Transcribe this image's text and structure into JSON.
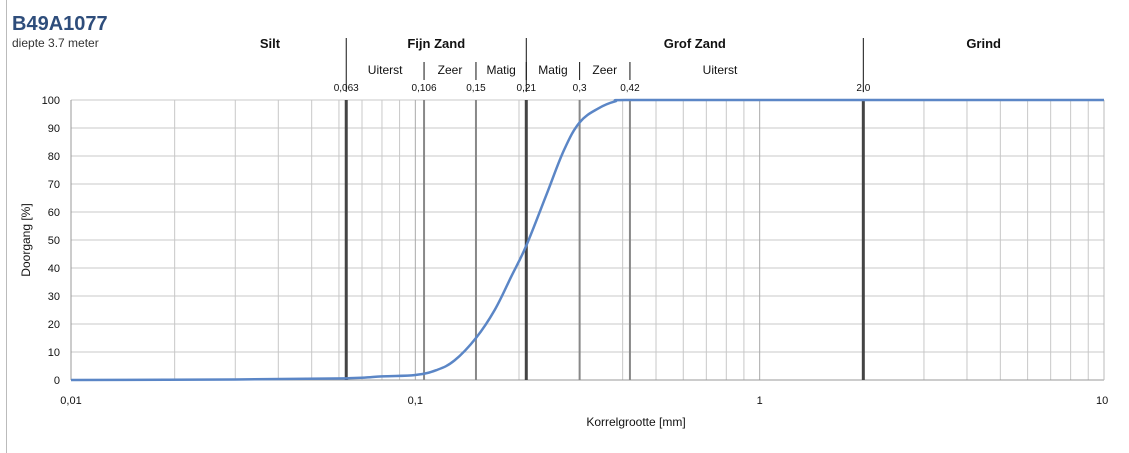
{
  "header": {
    "title": "B49A1077",
    "subtitle": "diepte 3.7 meter"
  },
  "zones": [
    {
      "label": "Silt",
      "from": 0.01,
      "to": 0.063
    },
    {
      "label": "Fijn Zand",
      "from": 0.063,
      "to": 0.21
    },
    {
      "label": "Grof Zand",
      "from": 0.21,
      "to": 2.0
    },
    {
      "label": "Grind",
      "from": 2.0,
      "to": 10
    }
  ],
  "subzones": [
    {
      "label": "Uiterst",
      "from": 0.063,
      "to": 0.106
    },
    {
      "label": "Zeer",
      "from": 0.106,
      "to": 0.15
    },
    {
      "label": "Matig",
      "from": 0.15,
      "to": 0.21
    },
    {
      "label": "Matig",
      "from": 0.21,
      "to": 0.3
    },
    {
      "label": "Zeer",
      "from": 0.3,
      "to": 0.42
    },
    {
      "label": "Uiterst",
      "from": 0.42,
      "to": 2.0
    }
  ],
  "boundaries": [
    {
      "label": "0,063",
      "value": 0.063
    },
    {
      "label": "0,106",
      "value": 0.106
    },
    {
      "label": "0,15",
      "value": 0.15
    },
    {
      "label": "0,21",
      "value": 0.21
    },
    {
      "label": "0,3",
      "value": 0.3
    },
    {
      "label": "0,42",
      "value": 0.42
    },
    {
      "label": "2,0",
      "value": 2.0
    }
  ],
  "colors": {
    "curve": "#5b86c6",
    "grid": "#c8c8c8",
    "boundary": "#888888",
    "boundary_major": "#444444",
    "title": "#2e4d7b"
  },
  "chart_data": {
    "type": "line",
    "xscale": "log",
    "xlim": [
      0.01,
      10
    ],
    "ylim": [
      0,
      100
    ],
    "xlabel": "Korrelgrootte [mm]",
    "ylabel": "Doorgang [%]",
    "x_tick_labels": [
      "0,01",
      "0,1",
      "1",
      "10"
    ],
    "x_ticks": [
      0.01,
      0.1,
      1,
      10
    ],
    "y_ticks": [
      0,
      10,
      20,
      30,
      40,
      50,
      60,
      70,
      80,
      90,
      100
    ],
    "grid": true,
    "series": [
      {
        "x": [
          0.01,
          0.03,
          0.063,
          0.08,
          0.1,
          0.115,
          0.13,
          0.15,
          0.17,
          0.19,
          0.21,
          0.24,
          0.27,
          0.3,
          0.34,
          0.38,
          0.42,
          1,
          2,
          10
        ],
        "y": [
          0,
          0.2,
          0.6,
          1.3,
          1.8,
          3.5,
          7,
          15,
          25,
          37,
          48,
          66,
          82,
          92,
          97,
          99.5,
          100,
          100,
          100,
          100
        ]
      }
    ]
  }
}
